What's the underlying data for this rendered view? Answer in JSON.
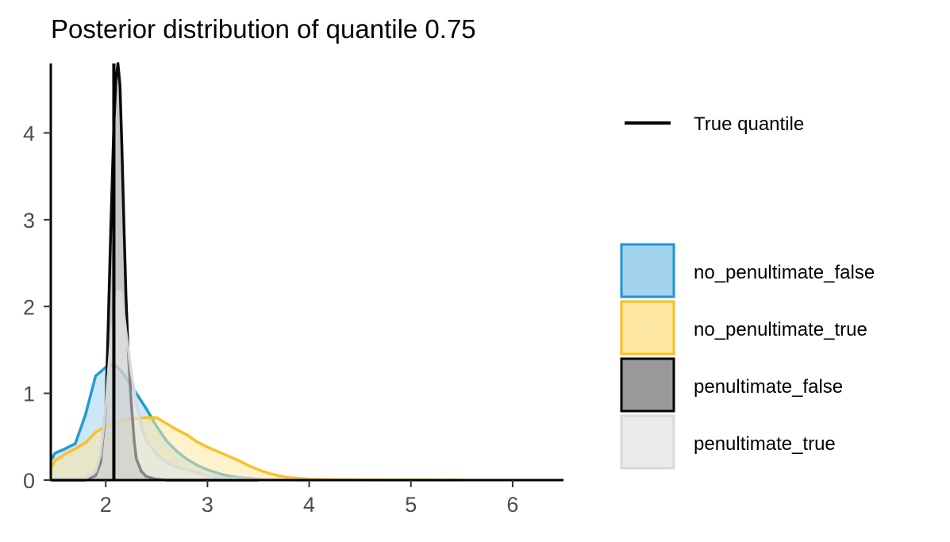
{
  "chart_data": {
    "type": "area",
    "title": "Posterior distribution of quantile 0.75",
    "xlabel": "",
    "ylabel": "",
    "xlim": [
      1.46,
      6.5
    ],
    "ylim": [
      0,
      4.8
    ],
    "x_ticks": [
      2,
      3,
      4,
      5,
      6
    ],
    "y_ticks": [
      0,
      1,
      2,
      3,
      4
    ],
    "grid": false,
    "legend_position": "right",
    "true_quantile": {
      "label": "True quantile",
      "value": 2.08,
      "color": "#000000"
    },
    "series": [
      {
        "name": "no_penultimate_false",
        "stroke": "#1a96d2",
        "fill": "#a2d4ee",
        "x": [
          1.47,
          1.5,
          1.6,
          1.7,
          1.8,
          1.9,
          2.0,
          2.05,
          2.1,
          2.15,
          2.2,
          2.3,
          2.4,
          2.5,
          2.6,
          2.7,
          2.8,
          2.9,
          3.0,
          3.1,
          3.2,
          3.3,
          3.4,
          3.5,
          3.6,
          3.8,
          4.0
        ],
        "y": [
          0.24,
          0.31,
          0.36,
          0.42,
          0.75,
          1.2,
          1.3,
          1.33,
          1.32,
          1.26,
          1.18,
          1.0,
          0.82,
          0.62,
          0.45,
          0.33,
          0.24,
          0.17,
          0.12,
          0.08,
          0.05,
          0.03,
          0.02,
          0.01,
          0.005,
          0.002,
          0.0
        ]
      },
      {
        "name": "no_penultimate_true",
        "stroke": "#fabf1e",
        "fill": "#fde7a2",
        "x": [
          1.47,
          1.5,
          1.6,
          1.7,
          1.8,
          1.9,
          2.0,
          2.1,
          2.2,
          2.3,
          2.4,
          2.5,
          2.6,
          2.7,
          2.8,
          2.9,
          3.0,
          3.1,
          3.2,
          3.3,
          3.4,
          3.5,
          3.6,
          3.7,
          3.8,
          3.9,
          4.0,
          4.2,
          4.5,
          5.0,
          5.5
        ],
        "y": [
          0.15,
          0.22,
          0.3,
          0.36,
          0.43,
          0.55,
          0.62,
          0.67,
          0.7,
          0.71,
          0.72,
          0.72,
          0.65,
          0.58,
          0.52,
          0.44,
          0.38,
          0.33,
          0.28,
          0.23,
          0.17,
          0.12,
          0.08,
          0.05,
          0.03,
          0.02,
          0.01,
          0.005,
          0.002,
          0.001,
          0.0
        ]
      },
      {
        "name": "penultimate_false",
        "stroke": "#000000",
        "fill": "#999999",
        "x": [
          1.47,
          1.6,
          1.8,
          1.9,
          1.95,
          2.0,
          2.02,
          2.05,
          2.08,
          2.1,
          2.12,
          2.14,
          2.16,
          2.18,
          2.2,
          2.22,
          2.25,
          2.28,
          2.3,
          2.35,
          2.4,
          2.5,
          2.6,
          3.0,
          3.5
        ],
        "y": [
          0.0,
          0.0,
          0.0,
          0.05,
          0.2,
          0.8,
          1.6,
          2.9,
          4.1,
          4.6,
          4.8,
          4.55,
          3.8,
          2.9,
          2.1,
          1.5,
          0.9,
          0.45,
          0.25,
          0.1,
          0.04,
          0.01,
          0.0,
          0.0,
          0.0
        ]
      },
      {
        "name": "penultimate_true",
        "stroke": "#d9d9d9",
        "fill": "#ebebeb",
        "x": [
          1.47,
          1.6,
          1.8,
          1.9,
          1.95,
          2.0,
          2.05,
          2.1,
          2.12,
          2.14,
          2.16,
          2.2,
          2.25,
          2.3,
          2.35,
          2.4,
          2.5,
          2.6,
          2.7,
          2.8,
          2.9,
          3.0,
          3.1,
          3.2,
          3.4,
          3.6,
          4.0
        ],
        "y": [
          0.02,
          0.01,
          0.02,
          0.1,
          0.3,
          0.85,
          1.6,
          2.05,
          2.18,
          2.18,
          2.1,
          1.7,
          1.25,
          0.9,
          0.62,
          0.45,
          0.3,
          0.2,
          0.15,
          0.12,
          0.08,
          0.05,
          0.03,
          0.02,
          0.01,
          0.005,
          0.0
        ]
      }
    ]
  }
}
